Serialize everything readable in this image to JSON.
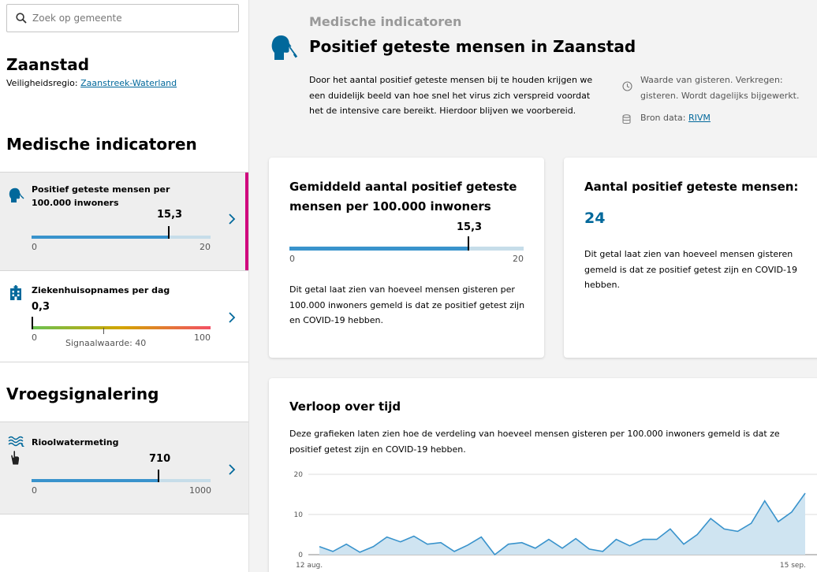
{
  "search": {
    "placeholder": "Zoek op gemeente",
    "icon": "search-icon"
  },
  "municipality": {
    "name": "Zaanstad",
    "region_label": "Veiligheidsregio:",
    "region_link": "Zaanstreek-Waterland"
  },
  "sidebar": {
    "medical_title": "Medische indicatoren",
    "early_title": "Vroegsignalering",
    "indicators": [
      {
        "label": "Positief geteste mensen per 100.000 inwoners",
        "value": "15,3",
        "value_num": 15.3,
        "min": "0",
        "max": "20",
        "max_num": 20,
        "icon": "person-test-icon",
        "active": true
      },
      {
        "label": "Ziekenhuisopnames per dag",
        "value": "0,3",
        "value_num": 0.3,
        "min": "0",
        "max": "100",
        "max_num": 100,
        "signal_label": "Signaalwaarde: 40",
        "signal_num": 40,
        "icon": "hospital-icon",
        "active": false
      },
      {
        "label": "Rioolwatermeting",
        "value": "710",
        "value_num": 710,
        "min": "0",
        "max": "1000",
        "max_num": 1000,
        "icon": "sewer-water-icon",
        "active": false
      }
    ]
  },
  "main": {
    "eyebrow": "Medische indicatoren",
    "title": "Positief geteste mensen in Zaanstad",
    "description": "Door het aantal positief geteste mensen bij te houden krijgen we een duidelijk beeld van hoe snel het virus zich verspreid voordat het de intensive care bereikt. Hierdoor blijven we voorbereid.",
    "updated_text": "Waarde van gisteren. Verkregen: gisteren. Wordt dagelijks bijgewerkt.",
    "source_label": "Bron data:",
    "source_link": "RIVM"
  },
  "card_average": {
    "title": "Gemiddeld aantal positief geteste mensen per 100.000 inwoners",
    "value": "15,3",
    "value_num": 15.3,
    "min": "0",
    "max": "20",
    "max_num": 20,
    "description": "Dit getal laat zien van hoeveel mensen gisteren per 100.000 inwoners gemeld is dat ze positief getest zijn en COVID-19 hebben."
  },
  "card_total": {
    "title": "Aantal positief geteste mensen:",
    "value": "24",
    "description": "Dit getal laat zien van hoeveel mensen gisteren gemeld is dat ze positief getest zijn en COVID-19 hebben."
  },
  "card_trend": {
    "title": "Verloop over tijd",
    "description": "Deze grafieken laten zien hoe de verdeling van hoeveel mensen gisteren per 100.000 inwoners gemeld is dat ze positief getest zijn en COVID-19 hebben."
  },
  "colors": {
    "accent": "#d0007d",
    "bar": "#3993cc",
    "bar_bg": "#c6dde9",
    "link": "#01689b"
  },
  "chart_data": {
    "type": "area",
    "title": "",
    "xlabel": "",
    "ylabel": "",
    "x_tick_labels": [
      "12 aug.",
      "15 sep."
    ],
    "y_ticks": [
      0,
      10,
      20
    ],
    "ylim": [
      0,
      20
    ],
    "grid": true,
    "values": [
      2.0,
      0.8,
      2.6,
      0.6,
      2.0,
      4.4,
      3.2,
      4.6,
      2.6,
      3.0,
      0.8,
      2.4,
      4.4,
      0.0,
      2.6,
      3.0,
      1.6,
      3.8,
      1.6,
      4.0,
      1.4,
      0.8,
      3.8,
      2.2,
      3.8,
      3.8,
      6.4,
      2.6,
      5.0,
      9.0,
      6.4,
      5.8,
      7.8,
      13.4,
      8.2,
      10.6,
      15.3
    ]
  }
}
